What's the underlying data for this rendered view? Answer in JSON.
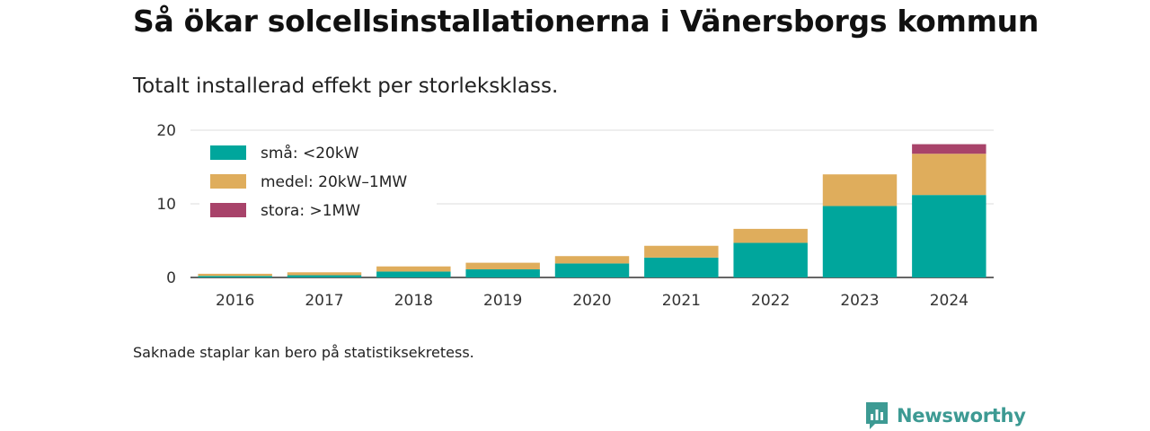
{
  "title": "Så ökar solcellsinstallationerna i Vänersborgs kommun",
  "subtitle": "Totalt installerad effekt per storleksklass.",
  "note": "Saknade staplar kan bero på statistiksekretess.",
  "brand": {
    "name": "Newsworthy",
    "color": "#3d9a93"
  },
  "chart_data": {
    "type": "bar",
    "stacked": true,
    "categories": [
      "2016",
      "2017",
      "2018",
      "2019",
      "2020",
      "2021",
      "2022",
      "2023",
      "2024"
    ],
    "series": [
      {
        "name": "små: <20kW",
        "color": "#00a69c",
        "values": [
          0.2,
          0.3,
          0.8,
          1.1,
          1.9,
          2.7,
          4.7,
          9.7,
          11.2
        ]
      },
      {
        "name": "medel: 20kW–1MW",
        "color": "#dfad5c",
        "values": [
          0.3,
          0.4,
          0.7,
          0.9,
          1.0,
          1.6,
          1.9,
          4.3,
          5.6
        ]
      },
      {
        "name": "stora: >1MW",
        "color": "#a8436a",
        "values": [
          0,
          0,
          0,
          0,
          0,
          0,
          0,
          0,
          1.3
        ]
      }
    ],
    "yticks": [
      0,
      10,
      20
    ],
    "ylim": [
      0,
      20
    ],
    "grid": true,
    "legend": "top-left"
  }
}
